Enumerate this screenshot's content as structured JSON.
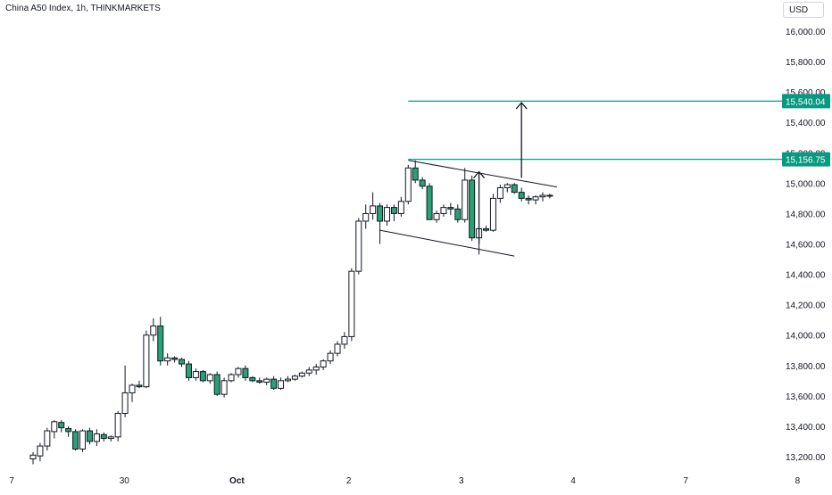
{
  "header": {
    "symbol_line": "China A50 Index, 1h, THINKMARKETS"
  },
  "currency": "USD",
  "colors": {
    "up": "#ffffff",
    "down": "#26a275",
    "wick": "#131722",
    "level": "#089981",
    "label_bg": "#089981"
  },
  "chart_data": {
    "type": "candlestick",
    "title": "China A50 Index, 1h, THINKMARKETS",
    "ylim": [
      13100,
      16100
    ],
    "y_ticks": [
      "16,000.00",
      "15,800.00",
      "15,600.00",
      "15,400.00",
      "15,200.00",
      "15,000.00",
      "14,800.00",
      "14,600.00",
      "14,400.00",
      "14,200.00",
      "14,000.00",
      "13,800.00",
      "13,600.00",
      "13,400.00",
      "13,200.00"
    ],
    "x_ticks": [
      {
        "label": "7",
        "idx": -3
      },
      {
        "label": "30",
        "idx": 12.9
      },
      {
        "label": "Oct",
        "idx": 28.8
      },
      {
        "label": "2",
        "idx": 44.6
      },
      {
        "label": "3",
        "idx": 60.5
      },
      {
        "label": "4",
        "idx": 76.3
      },
      {
        "label": "7",
        "idx": 92.2
      },
      {
        "label": "8",
        "idx": 108
      }
    ],
    "candles": [
      [
        13185,
        13230,
        13150,
        13210
      ],
      [
        13205,
        13290,
        13170,
        13270
      ],
      [
        13270,
        13390,
        13240,
        13370
      ],
      [
        13365,
        13440,
        13320,
        13430
      ],
      [
        13425,
        13440,
        13360,
        13390
      ],
      [
        13385,
        13400,
        13330,
        13365
      ],
      [
        13365,
        13380,
        13240,
        13250
      ],
      [
        13250,
        13380,
        13230,
        13370
      ],
      [
        13370,
        13390,
        13280,
        13300
      ],
      [
        13300,
        13380,
        13270,
        13350
      ],
      [
        13345,
        13360,
        13300,
        13320
      ],
      [
        13320,
        13340,
        13300,
        13330
      ],
      [
        13330,
        13500,
        13300,
        13485
      ],
      [
        13485,
        13800,
        13460,
        13620
      ],
      [
        13620,
        13680,
        13560,
        13670
      ],
      [
        13670,
        13700,
        13650,
        13660
      ],
      [
        13660,
        14030,
        13650,
        14000
      ],
      [
        14000,
        14110,
        13960,
        14060
      ],
      [
        14060,
        14120,
        13800,
        13830
      ],
      [
        13830,
        13880,
        13800,
        13850
      ],
      [
        13850,
        13860,
        13820,
        13840
      ],
      [
        13840,
        13850,
        13790,
        13810
      ],
      [
        13810,
        13830,
        13700,
        13720
      ],
      [
        13720,
        13780,
        13700,
        13760
      ],
      [
        13760,
        13770,
        13690,
        13700
      ],
      [
        13700,
        13750,
        13680,
        13740
      ],
      [
        13740,
        13760,
        13600,
        13610
      ],
      [
        13610,
        13720,
        13590,
        13700
      ],
      [
        13700,
        13750,
        13690,
        13740
      ],
      [
        13740,
        13790,
        13720,
        13780
      ],
      [
        13780,
        13800,
        13700,
        13720
      ],
      [
        13720,
        13730,
        13690,
        13700
      ],
      [
        13700,
        13720,
        13680,
        13690
      ],
      [
        13690,
        13720,
        13670,
        13710
      ],
      [
        13710,
        13730,
        13640,
        13650
      ],
      [
        13650,
        13720,
        13640,
        13700
      ],
      [
        13700,
        13730,
        13690,
        13710
      ],
      [
        13710,
        13740,
        13700,
        13730
      ],
      [
        13730,
        13760,
        13720,
        13750
      ],
      [
        13750,
        13790,
        13730,
        13770
      ],
      [
        13770,
        13810,
        13740,
        13790
      ],
      [
        13790,
        13840,
        13770,
        13830
      ],
      [
        13830,
        13900,
        13810,
        13880
      ],
      [
        13880,
        13960,
        13860,
        13940
      ],
      [
        13940,
        14020,
        13910,
        13990
      ],
      [
        13990,
        14440,
        13960,
        14420
      ],
      [
        14420,
        14770,
        14400,
        14750
      ],
      [
        14750,
        14860,
        14700,
        14800
      ],
      [
        14800,
        14940,
        14760,
        14850
      ],
      [
        14850,
        14870,
        14600,
        14750
      ],
      [
        14750,
        14860,
        14720,
        14840
      ],
      [
        14840,
        14860,
        14750,
        14800
      ],
      [
        14800,
        14910,
        14780,
        14880
      ],
      [
        14880,
        15120,
        14860,
        15100
      ],
      [
        15100,
        15150,
        15000,
        15020
      ],
      [
        15020,
        15040,
        14960,
        14980
      ],
      [
        14980,
        15000,
        14760,
        14760
      ],
      [
        14760,
        14820,
        14740,
        14800
      ],
      [
        14800,
        14860,
        14780,
        14840
      ],
      [
        14840,
        14870,
        14790,
        14830
      ],
      [
        14830,
        14860,
        14740,
        14760
      ],
      [
        14760,
        15100,
        14740,
        15020
      ],
      [
        15020,
        15050,
        14620,
        14640
      ],
      [
        14640,
        14700,
        14530,
        14700
      ],
      [
        14700,
        14720,
        14680,
        14690
      ],
      [
        14690,
        14930,
        14680,
        14900
      ],
      [
        14900,
        14990,
        14870,
        14970
      ],
      [
        14970,
        15000,
        14940,
        14990
      ],
      [
        14990,
        15000,
        14930,
        14940
      ],
      [
        14940,
        14970,
        14880,
        14900
      ],
      [
        14900,
        14920,
        14860,
        14890
      ],
      [
        14890,
        14920,
        14860,
        14910
      ],
      [
        14910,
        14940,
        14880,
        14920
      ],
      [
        14920,
        14930,
        14900,
        14915
      ]
    ],
    "annotations": {
      "levels": [
        {
          "price": 15540.04,
          "label": "15,540.04",
          "from_idx": 53
        },
        {
          "price": 15156.75,
          "label": "15,156.75",
          "from_idx": 53
        }
      ],
      "lines": [
        {
          "x1": 53,
          "y1": 15150,
          "x2": 74,
          "y2": 14975
        },
        {
          "x1": 49,
          "y1": 14690,
          "x2": 68,
          "y2": 14520
        }
      ],
      "arrows": [
        {
          "x": 63,
          "y1": 14600,
          "y2": 15075
        },
        {
          "x": 69,
          "y1": 15035,
          "y2": 15530
        }
      ]
    }
  }
}
